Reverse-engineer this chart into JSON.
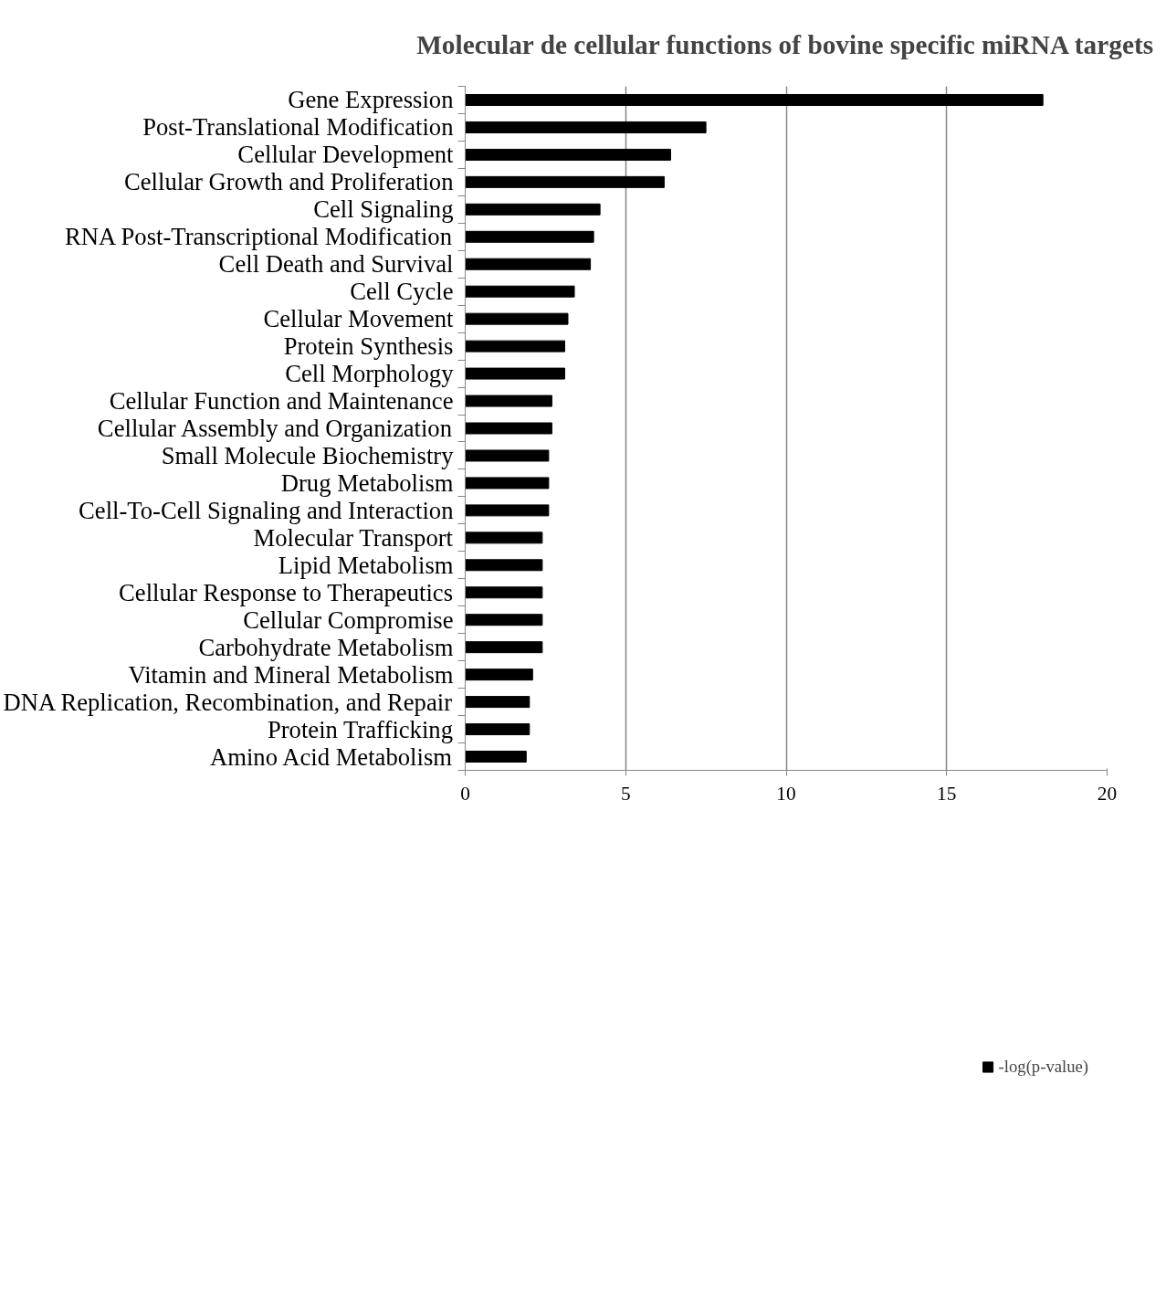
{
  "chart_data": {
    "type": "bar",
    "orientation": "horizontal",
    "title": "Molecular de cellular functions of bovine specific miRNA targets",
    "categories": [
      "Gene Expression",
      "Post-Translational Modification",
      "Cellular Development",
      "Cellular Growth and Proliferation",
      "Cell Signaling",
      "RNA Post-Transcriptional Modification",
      "Cell Death and Survival",
      "Cell Cycle",
      "Cellular Movement",
      "Protein Synthesis",
      "Cell Morphology",
      "Cellular Function and Maintenance",
      "Cellular Assembly and Organization",
      "Small Molecule Biochemistry",
      "Drug Metabolism",
      "Cell-To-Cell Signaling and Interaction",
      "Molecular Transport",
      "Lipid Metabolism",
      "Cellular Response to Therapeutics",
      "Cellular Compromise",
      "Carbohydrate Metabolism",
      "Vitamin and Mineral Metabolism",
      "DNA Replication, Recombination, and Repair",
      "Protein Trafficking",
      "Amino Acid Metabolism"
    ],
    "series": [
      {
        "name": "-log(p-value)",
        "color": "#000000",
        "values": [
          18.0,
          7.5,
          6.4,
          6.2,
          4.2,
          4.0,
          3.9,
          3.4,
          3.2,
          3.1,
          3.1,
          2.7,
          2.7,
          2.6,
          2.6,
          2.6,
          2.4,
          2.4,
          2.4,
          2.4,
          2.4,
          2.1,
          2.0,
          2.0,
          1.9
        ]
      }
    ],
    "xlim": [
      0,
      20
    ],
    "xticks": [
      0,
      5,
      10,
      15,
      20
    ],
    "grid": "x",
    "legend": "bottom"
  }
}
